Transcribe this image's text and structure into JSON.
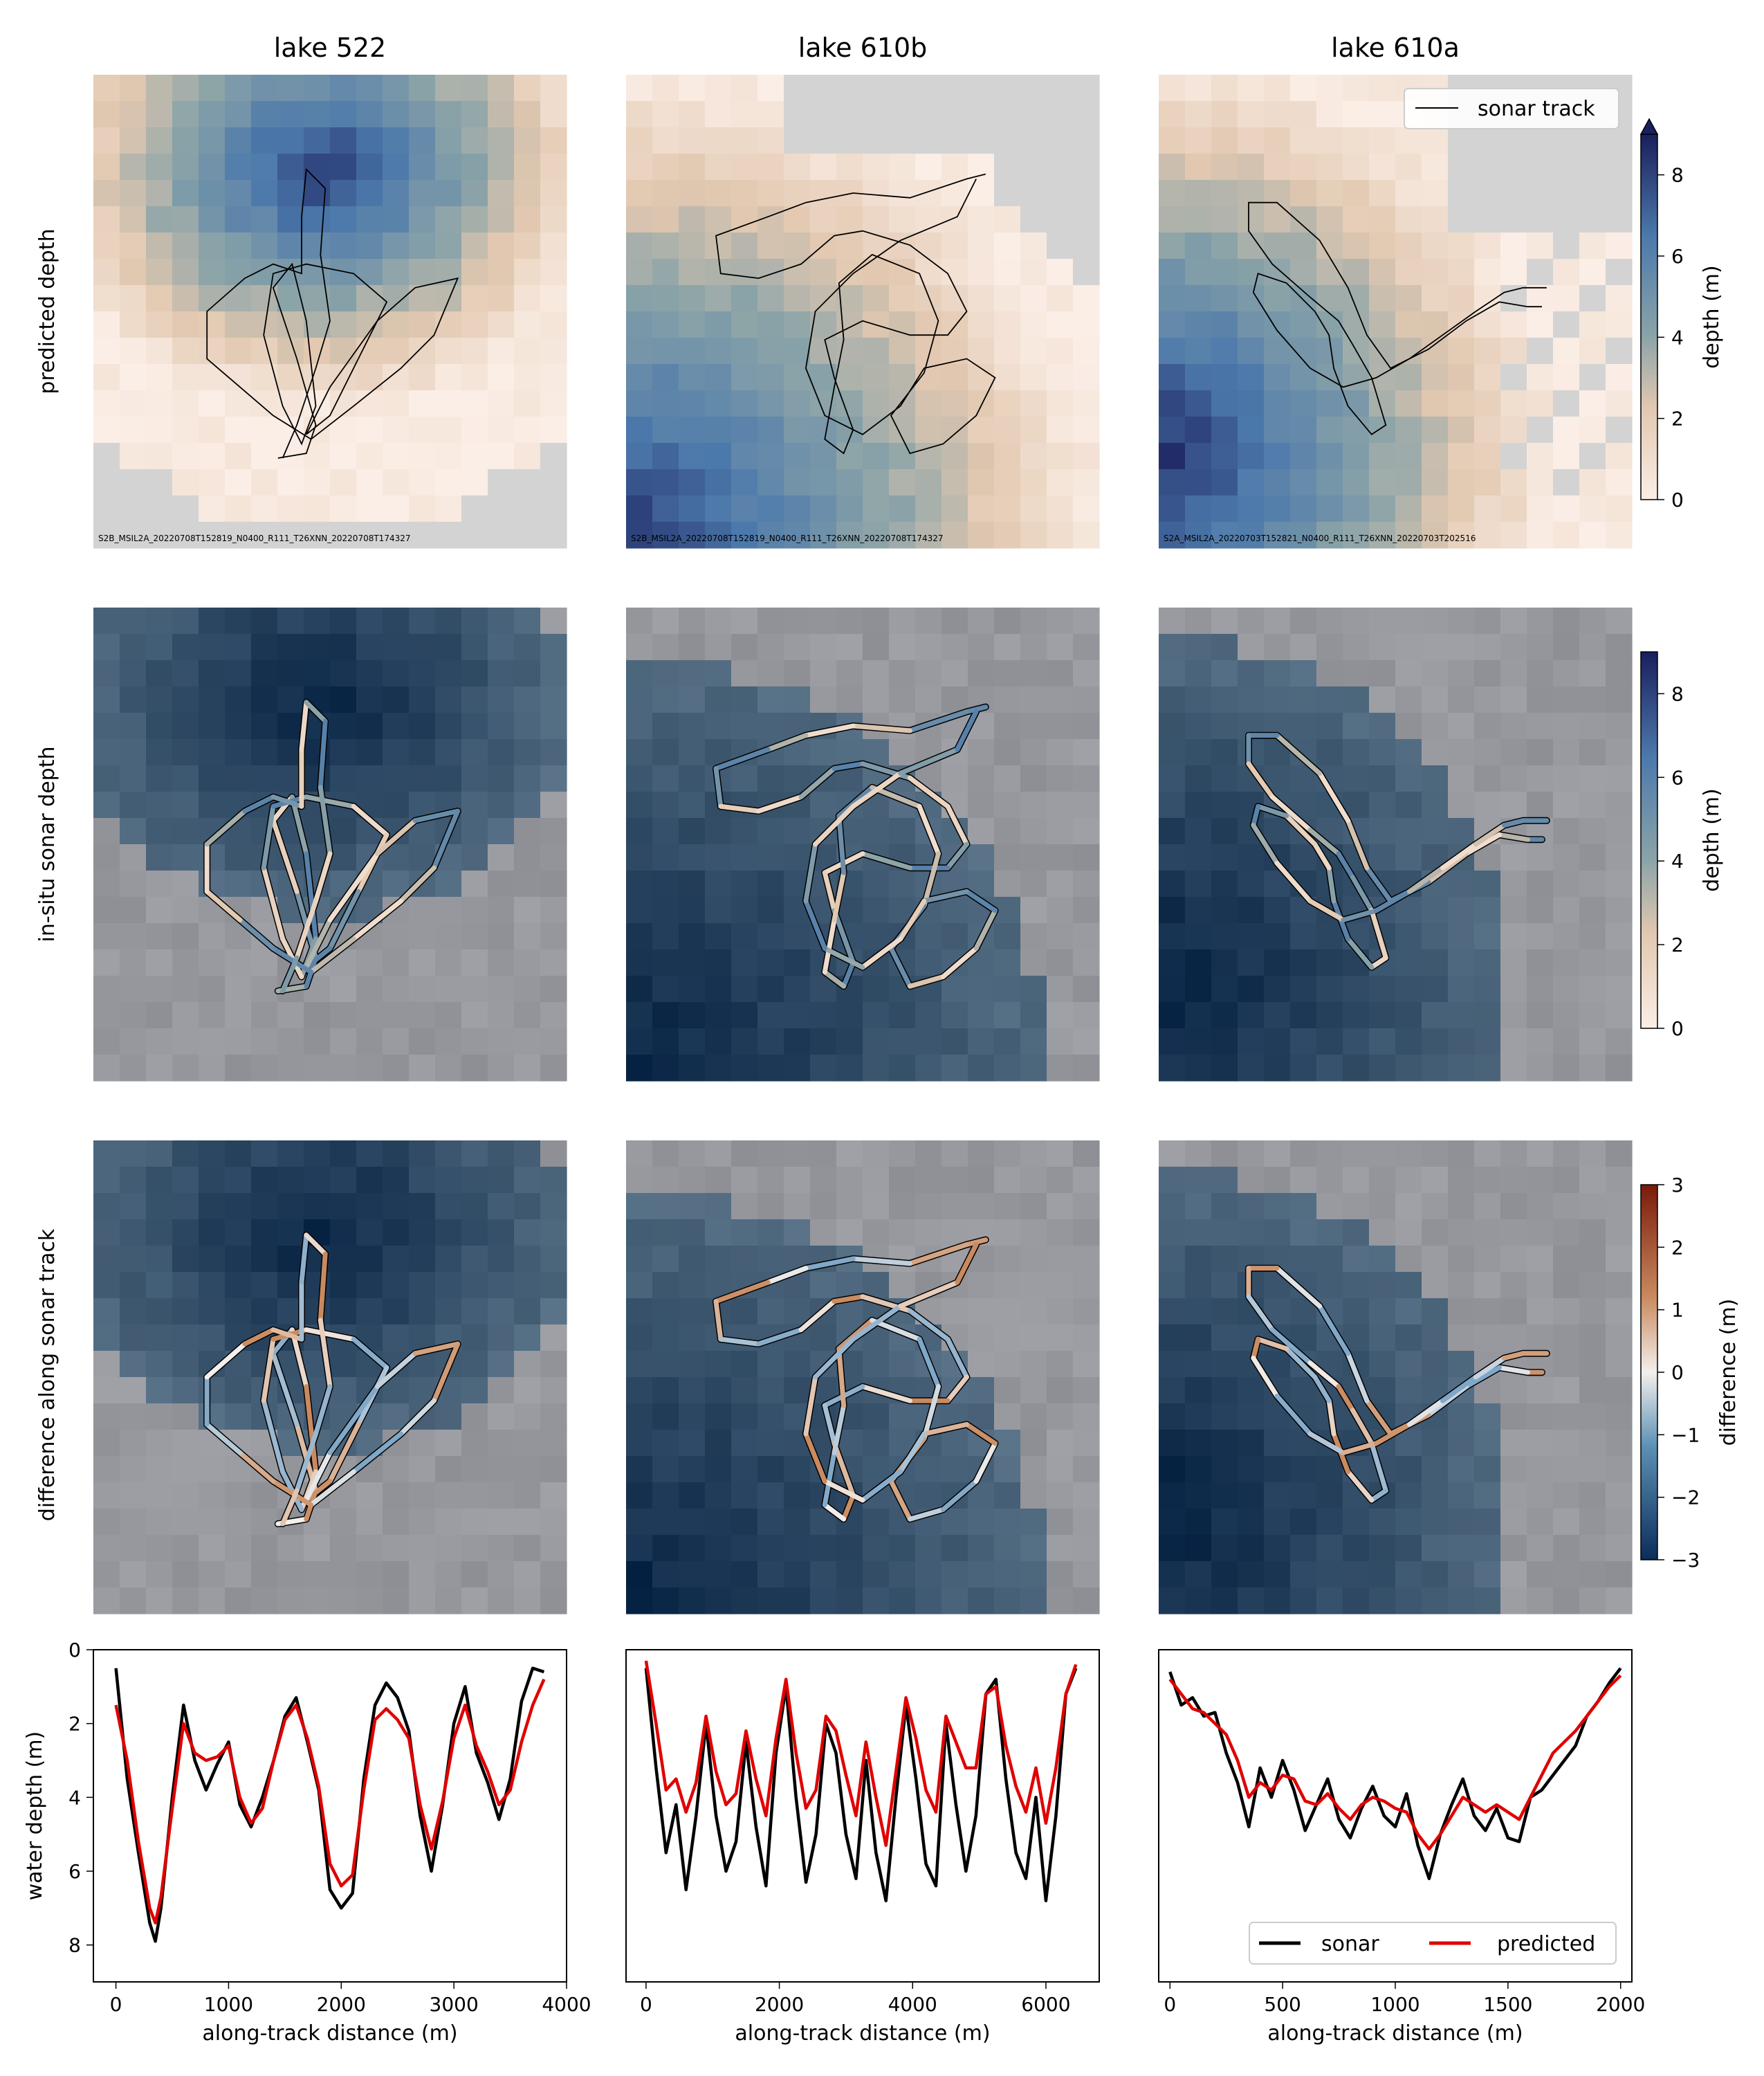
{
  "columns": [
    "lake 522",
    "lake 610b",
    "lake 610a"
  ],
  "row_labels": [
    "predicted depth",
    "in-situ sonar depth",
    "difference along sonar track"
  ],
  "scene_ids": [
    "S2B_MSIL2A_20220708T152819_N0400_R111_T26XNN_20220708T174327",
    "S2B_MSIL2A_20220708T152819_N0400_R111_T26XNN_20220708T174327",
    "S2A_MSIL2A_20220703T152821_N0400_R111_T26XNN_20220703T202516"
  ],
  "legend_track": "sonar track",
  "colorbars": [
    {
      "label": "depth (m)",
      "ticks": [
        "0",
        "2",
        "4",
        "6",
        "8"
      ],
      "range": [
        0,
        9
      ],
      "extend": "max"
    },
    {
      "label": "depth (m)",
      "ticks": [
        "0",
        "2",
        "4",
        "6",
        "8"
      ],
      "range": [
        0,
        9
      ]
    },
    {
      "label": "difference (m)",
      "ticks": [
        "−3",
        "−2",
        "−1",
        "0",
        "1",
        "2",
        "3"
      ],
      "range": [
        -3,
        3
      ]
    }
  ],
  "colors": {
    "depth_low": "#fbeee6",
    "depth_mid": "#e2c8b0",
    "depth_mid2": "#8aa3a8",
    "depth_high": "#4c79ab",
    "depth_max": "#1a1f5e",
    "diff_neg": "#0b2d5a",
    "diff_zero": "#f3efec",
    "diff_pos": "#7a1a0a",
    "no_data": "#d3d3d3",
    "sonar": "#000000",
    "predicted": "#e00000"
  },
  "chart_data": [
    {
      "type": "line",
      "panel": "lake 522",
      "xlabel": "along-track distance (m)",
      "ylabel": "water depth (m)",
      "xlim": [
        -200,
        4000
      ],
      "ylim": [
        9,
        0
      ],
      "xticks": [
        "0",
        "1000",
        "2000",
        "3000",
        "4000"
      ],
      "yticks": [
        "0",
        "2",
        "4",
        "6",
        "8"
      ],
      "series": [
        {
          "name": "sonar",
          "x": [
            0,
            100,
            200,
            300,
            350,
            400,
            500,
            600,
            700,
            800,
            900,
            1000,
            1100,
            1200,
            1300,
            1400,
            1500,
            1600,
            1700,
            1800,
            1900,
            2000,
            2100,
            2200,
            2300,
            2400,
            2500,
            2600,
            2700,
            2800,
            2900,
            3000,
            3100,
            3200,
            3300,
            3400,
            3500,
            3600,
            3700,
            3800
          ],
          "y": [
            0.5,
            3.5,
            5.5,
            7.4,
            7.9,
            7.0,
            4.0,
            1.5,
            3.0,
            3.8,
            3.1,
            2.5,
            4.2,
            4.8,
            4.0,
            3.0,
            1.8,
            1.3,
            2.5,
            3.8,
            6.5,
            7.0,
            6.6,
            3.5,
            1.5,
            0.9,
            1.3,
            2.2,
            4.5,
            6.0,
            4.2,
            2.0,
            1.0,
            2.8,
            3.6,
            4.6,
            3.5,
            1.4,
            0.5,
            0.6
          ]
        },
        {
          "name": "predicted",
          "x": [
            0,
            100,
            200,
            300,
            350,
            400,
            500,
            600,
            700,
            800,
            900,
            1000,
            1100,
            1200,
            1300,
            1400,
            1500,
            1600,
            1700,
            1800,
            1900,
            2000,
            2100,
            2200,
            2300,
            2400,
            2500,
            2600,
            2700,
            2800,
            2900,
            3000,
            3100,
            3200,
            3300,
            3400,
            3500,
            3600,
            3700,
            3800
          ],
          "y": [
            1.5,
            3.0,
            5.2,
            7.0,
            7.4,
            6.7,
            4.3,
            2.0,
            2.8,
            3.0,
            2.9,
            2.6,
            4.0,
            4.7,
            4.3,
            3.0,
            1.9,
            1.5,
            2.4,
            3.7,
            5.8,
            6.4,
            6.1,
            3.8,
            1.9,
            1.6,
            1.9,
            2.4,
            4.2,
            5.4,
            4.1,
            2.4,
            1.5,
            2.6,
            3.3,
            4.2,
            3.8,
            2.5,
            1.5,
            0.8
          ]
        }
      ]
    },
    {
      "type": "line",
      "panel": "lake 610b",
      "xlabel": "along-track distance (m)",
      "ylabel": "",
      "xlim": [
        -300,
        6800
      ],
      "ylim": [
        9,
        0
      ],
      "xticks": [
        "0",
        "2000",
        "4000",
        "6000"
      ],
      "yticks": [],
      "series": [
        {
          "name": "sonar",
          "x": [
            0,
            150,
            300,
            450,
            600,
            750,
            900,
            1050,
            1200,
            1350,
            1500,
            1650,
            1800,
            1950,
            2100,
            2250,
            2400,
            2550,
            2700,
            2850,
            3000,
            3150,
            3300,
            3450,
            3600,
            3750,
            3900,
            4050,
            4200,
            4350,
            4500,
            4650,
            4800,
            4950,
            5100,
            5250,
            5400,
            5550,
            5700,
            5850,
            6000,
            6150,
            6300,
            6450
          ],
          "y": [
            0.5,
            3.2,
            5.5,
            4.2,
            6.5,
            4.5,
            2.0,
            4.5,
            6.0,
            5.2,
            2.5,
            4.8,
            6.4,
            2.8,
            1.0,
            4.0,
            6.3,
            5.0,
            2.0,
            2.8,
            5.0,
            6.2,
            3.0,
            5.5,
            6.8,
            4.0,
            1.5,
            3.5,
            5.8,
            6.4,
            2.0,
            4.2,
            6.0,
            4.5,
            1.2,
            0.8,
            3.5,
            5.5,
            6.2,
            4.0,
            6.8,
            4.5,
            1.2,
            0.5
          ]
        },
        {
          "name": "predicted",
          "x": [
            0,
            150,
            300,
            450,
            600,
            750,
            900,
            1050,
            1200,
            1350,
            1500,
            1650,
            1800,
            1950,
            2100,
            2250,
            2400,
            2550,
            2700,
            2850,
            3000,
            3150,
            3300,
            3450,
            3600,
            3750,
            3900,
            4050,
            4200,
            4350,
            4500,
            4650,
            4800,
            4950,
            5100,
            5250,
            5400,
            5550,
            5700,
            5850,
            6000,
            6150,
            6300,
            6450
          ],
          "y": [
            0.3,
            2.0,
            3.8,
            3.5,
            4.4,
            3.6,
            1.8,
            3.3,
            4.2,
            3.9,
            2.2,
            3.5,
            4.5,
            2.4,
            0.8,
            2.8,
            4.3,
            3.8,
            1.8,
            2.2,
            3.4,
            4.5,
            2.5,
            4.0,
            5.3,
            3.3,
            1.3,
            2.4,
            3.8,
            4.4,
            1.8,
            2.5,
            3.2,
            3.2,
            1.2,
            1.0,
            2.6,
            3.7,
            4.4,
            3.2,
            4.7,
            3.2,
            1.2,
            0.4
          ]
        }
      ]
    },
    {
      "type": "line",
      "panel": "lake 610a",
      "xlabel": "along-track distance (m)",
      "ylabel": "",
      "xlim": [
        -50,
        2050
      ],
      "ylim": [
        9,
        0
      ],
      "xticks": [
        "0",
        "500",
        "1000",
        "1500",
        "2000"
      ],
      "yticks": [],
      "legend": "bottom-right",
      "series": [
        {
          "name": "sonar",
          "x": [
            0,
            50,
            100,
            150,
            200,
            250,
            300,
            350,
            400,
            450,
            500,
            550,
            600,
            650,
            700,
            750,
            800,
            850,
            900,
            950,
            1000,
            1050,
            1100,
            1150,
            1200,
            1250,
            1300,
            1350,
            1400,
            1450,
            1500,
            1550,
            1600,
            1650,
            1700,
            1750,
            1800,
            1850,
            1900,
            1950,
            2000
          ],
          "y": [
            0.6,
            1.5,
            1.3,
            1.8,
            1.7,
            2.8,
            3.6,
            4.8,
            3.2,
            4.0,
            3.0,
            3.8,
            4.9,
            4.2,
            3.5,
            4.6,
            5.1,
            4.3,
            3.7,
            4.5,
            4.8,
            3.9,
            5.3,
            6.2,
            5.0,
            4.2,
            3.5,
            4.5,
            4.9,
            4.3,
            5.1,
            5.2,
            4.0,
            3.8,
            3.4,
            3.0,
            2.6,
            1.8,
            1.4,
            0.9,
            0.5
          ]
        },
        {
          "name": "predicted",
          "x": [
            0,
            50,
            100,
            150,
            200,
            250,
            300,
            350,
            400,
            450,
            500,
            550,
            600,
            650,
            700,
            750,
            800,
            850,
            900,
            950,
            1000,
            1050,
            1100,
            1150,
            1200,
            1250,
            1300,
            1350,
            1400,
            1450,
            1500,
            1550,
            1600,
            1650,
            1700,
            1750,
            1800,
            1850,
            1900,
            1950,
            2000
          ],
          "y": [
            0.8,
            1.2,
            1.6,
            1.7,
            2.0,
            2.3,
            3.0,
            4.0,
            3.6,
            3.8,
            3.4,
            3.5,
            4.1,
            4.2,
            3.9,
            4.3,
            4.6,
            4.2,
            4.0,
            4.1,
            4.3,
            4.4,
            5.0,
            5.4,
            5.0,
            4.5,
            4.0,
            4.2,
            4.4,
            4.2,
            4.4,
            4.6,
            4.0,
            3.4,
            2.8,
            2.5,
            2.2,
            1.8,
            1.4,
            1.0,
            0.7
          ]
        }
      ],
      "legend_entries": [
        "sonar",
        "predicted"
      ]
    }
  ]
}
